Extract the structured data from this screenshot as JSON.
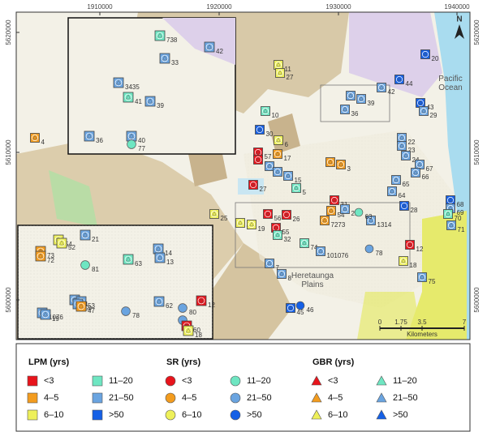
{
  "map": {
    "x_ticks": [
      1910000,
      1920000,
      1930000,
      1940000
    ],
    "y_ticks": [
      5620000,
      5610000,
      5600000
    ],
    "places": [
      "Pacific Ocean",
      "Heretaunga Plains"
    ],
    "north": "N",
    "scale": {
      "ticks": [
        "0",
        "1.75",
        "3.5",
        "7"
      ],
      "unit": "Kilometers"
    },
    "sites": [
      {
        "label": "11",
        "class": 2,
        "shape": "square"
      },
      {
        "label": "27",
        "class": 2,
        "shape": "square"
      },
      {
        "label": "44",
        "class": 5,
        "shape": "square"
      },
      {
        "label": "20",
        "class": 5,
        "shape": "square"
      },
      {
        "label": "43",
        "class": 5,
        "shape": "square"
      },
      {
        "label": "29",
        "class": 4,
        "shape": "square"
      },
      {
        "label": "10",
        "class": 3,
        "shape": "square"
      },
      {
        "label": "30",
        "class": 5,
        "shape": "square"
      },
      {
        "label": "4",
        "class": 1,
        "shape": "square"
      },
      {
        "label": "57",
        "class": 0,
        "shape": "square"
      },
      {
        "label": "58",
        "class": 0,
        "shape": "square"
      },
      {
        "label": "6",
        "class": 2,
        "shape": "square"
      },
      {
        "label": "17",
        "class": 1,
        "shape": "square"
      },
      {
        "label": "59",
        "class": 4,
        "shape": "square"
      },
      {
        "label": "16",
        "class": 4,
        "shape": "square"
      },
      {
        "label": "15",
        "class": 4,
        "shape": "square"
      },
      {
        "label": "5",
        "class": 3,
        "shape": "square"
      },
      {
        "label": "27",
        "class": 0,
        "shape": "square"
      },
      {
        "label": "2",
        "class": 1,
        "shape": "square"
      },
      {
        "label": "3",
        "class": 1,
        "shape": "square"
      },
      {
        "label": "22",
        "class": 4,
        "shape": "square"
      },
      {
        "label": "23",
        "class": 4,
        "shape": "square"
      },
      {
        "label": "24",
        "class": 4,
        "shape": "square"
      },
      {
        "label": "67",
        "class": 4,
        "shape": "square"
      },
      {
        "label": "66",
        "class": 4,
        "shape": "square"
      },
      {
        "label": "65",
        "class": 4,
        "shape": "square"
      },
      {
        "label": "64",
        "class": 4,
        "shape": "square"
      },
      {
        "label": "68",
        "class": 5,
        "shape": "square"
      },
      {
        "label": "69",
        "class": 4,
        "shape": "square"
      },
      {
        "label": "70",
        "class": 3,
        "shape": "square"
      },
      {
        "label": "71",
        "class": 4,
        "shape": "square"
      },
      {
        "label": "31",
        "class": 0,
        "shape": "square"
      },
      {
        "label": "28",
        "class": 5,
        "shape": "square"
      },
      {
        "label": "54",
        "class": 1,
        "shape": "square"
      },
      {
        "label": "25",
        "class": 2,
        "shape": "square"
      },
      {
        "label": "56",
        "class": 0,
        "shape": "square"
      },
      {
        "label": "26",
        "class": 0,
        "shape": "square"
      },
      {
        "label": "55",
        "class": 0,
        "shape": "square"
      },
      {
        "label": "9",
        "class": 2,
        "shape": "square"
      },
      {
        "label": "19",
        "class": 2,
        "shape": "square"
      },
      {
        "label": "32",
        "class": 3,
        "shape": "square"
      },
      {
        "label": "21",
        "class": 4,
        "shape": "square"
      },
      {
        "label": "1314",
        "class": 4,
        "shape": "square"
      },
      {
        "label": "63",
        "class": 3,
        "shape": "circle"
      },
      {
        "label": "7273",
        "class": 1,
        "shape": "square"
      },
      {
        "label": "74",
        "class": 3,
        "shape": "square"
      },
      {
        "label": "101076",
        "class": 4,
        "shape": "square"
      },
      {
        "label": "7",
        "class": 4,
        "shape": "square"
      },
      {
        "label": "8",
        "class": 4,
        "shape": "square"
      },
      {
        "label": "78",
        "class": 4,
        "shape": "circle"
      },
      {
        "label": "12",
        "class": 0,
        "shape": "square"
      },
      {
        "label": "18",
        "class": 2,
        "shape": "square"
      },
      {
        "label": "75",
        "class": 4,
        "shape": "square"
      },
      {
        "label": "45",
        "class": 5,
        "shape": "square"
      },
      {
        "label": "46",
        "class": 5,
        "shape": "circle"
      },
      {
        "label": "33",
        "class": 4,
        "shape": "square"
      },
      {
        "label": "42",
        "class": 4,
        "shape": "square"
      },
      {
        "label": "36",
        "class": 4,
        "shape": "square"
      },
      {
        "label": "39",
        "class": 4,
        "shape": "square"
      }
    ],
    "inset_top": {
      "sites": [
        {
          "label": "738",
          "class": 3,
          "shape": "square"
        },
        {
          "label": "42",
          "class": 4,
          "shape": "square"
        },
        {
          "label": "33",
          "class": 4,
          "shape": "square"
        },
        {
          "label": "3435",
          "class": 4,
          "shape": "square"
        },
        {
          "label": "41",
          "class": 3,
          "shape": "square"
        },
        {
          "label": "39",
          "class": 4,
          "shape": "square"
        },
        {
          "label": "36",
          "class": 4,
          "shape": "square"
        },
        {
          "label": "40",
          "class": 4,
          "shape": "square"
        },
        {
          "label": "77",
          "class": 3,
          "shape": "circle"
        }
      ]
    },
    "inset_bottom": {
      "sites": [
        {
          "label": "54",
          "class": 2,
          "shape": "square"
        },
        {
          "label": "52",
          "class": 2,
          "shape": "square"
        },
        {
          "label": "21",
          "class": 4,
          "shape": "square"
        },
        {
          "label": "73",
          "class": 1,
          "shape": "square"
        },
        {
          "label": "72",
          "class": 1,
          "shape": "square"
        },
        {
          "label": "81",
          "class": 3,
          "shape": "circle"
        },
        {
          "label": "63",
          "class": 3,
          "shape": "square"
        },
        {
          "label": "14",
          "class": 4,
          "shape": "square"
        },
        {
          "label": "13",
          "class": 4,
          "shape": "square"
        },
        {
          "label": "51",
          "class": 4,
          "shape": "square"
        },
        {
          "label": "53",
          "class": 4,
          "shape": "square"
        },
        {
          "label": "1076",
          "class": 4,
          "shape": "square"
        },
        {
          "label": "19",
          "class": 4,
          "shape": "square"
        },
        {
          "label": "50",
          "class": 4,
          "shape": "square"
        },
        {
          "label": "47",
          "class": 1,
          "shape": "square"
        },
        {
          "label": "62",
          "class": 4,
          "shape": "square"
        },
        {
          "label": "80",
          "class": 4,
          "shape": "circle"
        },
        {
          "label": "12",
          "class": 0,
          "shape": "square"
        },
        {
          "label": "78",
          "class": 4,
          "shape": "circle"
        },
        {
          "label": "1",
          "class": 4,
          "shape": "circle"
        },
        {
          "label": "60",
          "class": 0,
          "shape": "square"
        },
        {
          "label": "18",
          "class": 2,
          "shape": "square"
        }
      ]
    }
  },
  "legend": {
    "groups": [
      {
        "title": "LPM (yrs)",
        "shape": "square"
      },
      {
        "title": "SR (yrs)",
        "shape": "circle"
      },
      {
        "title": "GBR (yrs)",
        "shape": "triangle"
      }
    ],
    "classes": [
      {
        "label": "<3",
        "color": "#e8141c"
      },
      {
        "label": "4–5",
        "color": "#f39c1f"
      },
      {
        "label": "6–10",
        "color": "#eef05a"
      },
      {
        "label": "11–20",
        "color": "#6fe6c2"
      },
      {
        "label": "21–50",
        "color": "#6aa4e0"
      },
      {
        "label": ">50",
        "color": "#1560e6"
      }
    ]
  }
}
